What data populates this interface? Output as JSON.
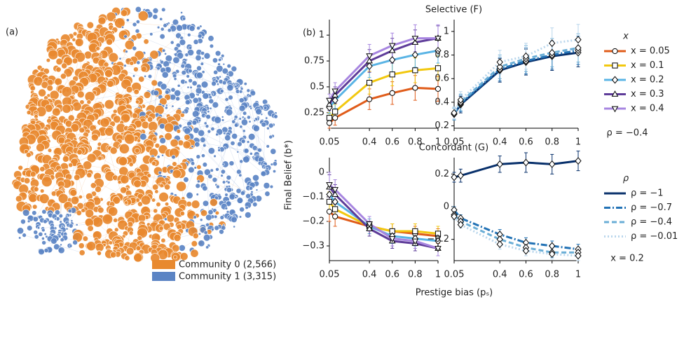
{
  "panel_a": {
    "label": "(a)",
    "legend": [
      {
        "name": "Community 0  (2,566)",
        "color": "#e8892f"
      },
      {
        "name": "Community 1  (3,315)",
        "color": "#5b84c4"
      }
    ]
  },
  "panel_b": {
    "label": "(b)",
    "y_label": "Final Belief (b*)",
    "x_label": "Prestige bias (pₛ)",
    "legends": [
      {
        "title": "x",
        "note": "ρ = −0.4",
        "entries": [
          {
            "name": "x = 0.05",
            "color": "#e05c1a",
            "marker": "circle",
            "linestyle": "solid"
          },
          {
            "name": "x = 0.1",
            "color": "#f2c80f",
            "marker": "square",
            "linestyle": "solid"
          },
          {
            "name": "x = 0.2",
            "color": "#5ab4e5",
            "marker": "diamond",
            "linestyle": "solid"
          },
          {
            "name": "x = 0.3",
            "color": "#5e3c99",
            "marker": "triangle-up",
            "linestyle": "solid"
          },
          {
            "name": "x = 0.4",
            "color": "#a785e0",
            "marker": "triangle-down",
            "linestyle": "solid"
          }
        ]
      },
      {
        "title": "ρ",
        "note": "x = 0.2",
        "entries": [
          {
            "name": "ρ = −1",
            "color": "#08306b",
            "linestyle": "solid"
          },
          {
            "name": "ρ = −0.7",
            "color": "#2272b5",
            "linestyle": "dashdot"
          },
          {
            "name": "ρ = −0.4",
            "color": "#6aaed6",
            "linestyle": "dashed"
          },
          {
            "name": "ρ = −0.01",
            "color": "#b9d6ec",
            "linestyle": "dotted"
          }
        ]
      }
    ]
  },
  "chart_data": [
    {
      "type": "line",
      "title": "Selective (F)",
      "x": [
        0.05,
        0.1,
        0.4,
        0.6,
        0.8,
        1
      ],
      "xlim": [
        0.05,
        1
      ],
      "xticks": [
        0.05,
        0.4,
        0.6,
        0.8,
        1
      ],
      "ylim": [
        0.1,
        1.15
      ],
      "yticks": [
        0.25,
        0.5,
        0.75,
        1
      ],
      "series": [
        {
          "color": "#e05c1a",
          "marker": "circle",
          "linestyle": "solid",
          "values": [
            0.15,
            0.2,
            0.38,
            0.44,
            0.49,
            0.48
          ],
          "errors": [
            0.05,
            0.07,
            0.1,
            0.11,
            0.12,
            0.12
          ]
        },
        {
          "color": "#f2c80f",
          "marker": "square",
          "linestyle": "solid",
          "values": [
            0.2,
            0.26,
            0.54,
            0.62,
            0.66,
            0.68
          ],
          "errors": [
            0.05,
            0.07,
            0.11,
            0.11,
            0.12,
            0.12
          ]
        },
        {
          "color": "#5ab4e5",
          "marker": "diamond",
          "linestyle": "solid",
          "values": [
            0.3,
            0.37,
            0.7,
            0.76,
            0.81,
            0.85
          ],
          "errors": [
            0.06,
            0.08,
            0.11,
            0.12,
            0.12,
            0.12
          ]
        },
        {
          "color": "#5e3c99",
          "marker": "triangle-up",
          "linestyle": "solid",
          "values": [
            0.33,
            0.42,
            0.75,
            0.85,
            0.93,
            0.97
          ],
          "errors": [
            0.06,
            0.08,
            0.11,
            0.12,
            0.12,
            0.12
          ]
        },
        {
          "color": "#a785e0",
          "marker": "triangle-down",
          "linestyle": "solid",
          "values": [
            0.37,
            0.46,
            0.8,
            0.9,
            0.97,
            0.97
          ],
          "errors": [
            0.06,
            0.08,
            0.11,
            0.12,
            0.13,
            0.13
          ]
        }
      ]
    },
    {
      "type": "line",
      "x": [
        0.05,
        0.1,
        0.4,
        0.6,
        0.8,
        1
      ],
      "xlim": [
        0.05,
        1
      ],
      "xticks": [
        0.05,
        0.4,
        0.6,
        0.8,
        1
      ],
      "ylim": [
        0.18,
        1.1
      ],
      "yticks": [
        0.2,
        0.4,
        0.6,
        0.8,
        1
      ],
      "series": [
        {
          "color": "#08306b",
          "marker": "diamond",
          "linestyle": "solid",
          "values": [
            0.3,
            0.38,
            0.67,
            0.74,
            0.79,
            0.82
          ],
          "errors": [
            0.05,
            0.07,
            0.1,
            0.11,
            0.12,
            0.12
          ]
        },
        {
          "color": "#2272b5",
          "marker": "diamond",
          "linestyle": "dashdot",
          "values": [
            0.3,
            0.39,
            0.68,
            0.75,
            0.8,
            0.84
          ],
          "errors": [
            0.05,
            0.07,
            0.1,
            0.11,
            0.12,
            0.12
          ]
        },
        {
          "color": "#6aaed6",
          "marker": "diamond",
          "linestyle": "dashed",
          "values": [
            0.3,
            0.4,
            0.7,
            0.77,
            0.82,
            0.86
          ],
          "errors": [
            0.05,
            0.07,
            0.1,
            0.11,
            0.12,
            0.12
          ]
        },
        {
          "color": "#b9d6ec",
          "marker": "diamond",
          "linestyle": "dotted",
          "values": [
            0.31,
            0.42,
            0.74,
            0.79,
            0.9,
            0.93
          ],
          "errors": [
            0.05,
            0.07,
            0.1,
            0.11,
            0.13,
            0.13
          ]
        }
      ]
    },
    {
      "type": "line",
      "title": "Concordant (G)",
      "x": [
        0.05,
        0.1,
        0.4,
        0.6,
        0.8,
        1
      ],
      "xlim": [
        0.05,
        1
      ],
      "xticks": [
        0.05,
        0.4,
        0.6,
        0.8,
        1
      ],
      "ylim": [
        -0.36,
        0.06
      ],
      "yticks": [
        0,
        {
          "value": -0.1,
          "label": "−0.1"
        },
        {
          "value": -0.2,
          "label": "−0.2"
        },
        {
          "value": -0.3,
          "label": "−0.3"
        }
      ],
      "series": [
        {
          "color": "#e05c1a",
          "marker": "circle",
          "linestyle": "solid",
          "values": [
            -0.16,
            -0.18,
            -0.22,
            -0.24,
            -0.25,
            -0.26
          ],
          "errors": [
            0.04,
            0.04,
            0.03,
            0.03,
            0.03,
            0.03
          ]
        },
        {
          "color": "#f2c80f",
          "marker": "square",
          "linestyle": "solid",
          "values": [
            -0.12,
            -0.15,
            -0.22,
            -0.24,
            -0.24,
            -0.25
          ],
          "errors": [
            0.04,
            0.04,
            0.03,
            0.03,
            0.03,
            0.03
          ]
        },
        {
          "color": "#5ab4e5",
          "marker": "diamond",
          "linestyle": "solid",
          "values": [
            -0.09,
            -0.12,
            -0.22,
            -0.26,
            -0.27,
            -0.28
          ],
          "errors": [
            0.04,
            0.04,
            0.03,
            0.03,
            0.03,
            0.03
          ]
        },
        {
          "color": "#5e3c99",
          "marker": "triangle-up",
          "linestyle": "solid",
          "values": [
            -0.06,
            -0.09,
            -0.23,
            -0.28,
            -0.29,
            -0.31
          ],
          "errors": [
            0.05,
            0.04,
            0.03,
            0.03,
            0.03,
            0.03
          ]
        },
        {
          "color": "#a785e0",
          "marker": "triangle-down",
          "linestyle": "solid",
          "values": [
            -0.05,
            -0.07,
            -0.21,
            -0.27,
            -0.28,
            -0.31
          ],
          "errors": [
            0.05,
            0.04,
            0.03,
            0.03,
            0.03,
            0.03
          ]
        }
      ]
    },
    {
      "type": "line",
      "x": [
        0.05,
        0.1,
        0.4,
        0.6,
        0.8,
        1
      ],
      "xlim": [
        0.05,
        1
      ],
      "xticks": [
        0.05,
        0.4,
        0.6,
        0.8,
        1
      ],
      "ylim": [
        -0.33,
        0.3
      ],
      "yticks": [
        0.2,
        0,
        {
          "value": -0.2,
          "label": "−0.2"
        }
      ],
      "series": [
        {
          "color": "#08306b",
          "marker": "diamond",
          "linestyle": "solid",
          "values": [
            0.18,
            0.19,
            0.26,
            0.27,
            0.26,
            0.28
          ],
          "errors": [
            0.03,
            0.04,
            0.05,
            0.06,
            0.06,
            0.06
          ]
        },
        {
          "color": "#2272b5",
          "marker": "diamond",
          "linestyle": "dashdot",
          "values": [
            -0.02,
            -0.07,
            -0.17,
            -0.22,
            -0.24,
            -0.26
          ],
          "errors": [
            0.02,
            0.02,
            0.03,
            0.03,
            0.03,
            0.03
          ]
        },
        {
          "color": "#6aaed6",
          "marker": "diamond",
          "linestyle": "dashed",
          "values": [
            -0.05,
            -0.09,
            -0.2,
            -0.25,
            -0.28,
            -0.28
          ],
          "errors": [
            0.02,
            0.02,
            0.03,
            0.03,
            0.03,
            0.03
          ]
        },
        {
          "color": "#b9d6ec",
          "marker": "diamond",
          "linestyle": "dotted",
          "values": [
            -0.06,
            -0.11,
            -0.23,
            -0.27,
            -0.29,
            -0.3
          ],
          "errors": [
            0.02,
            0.02,
            0.03,
            0.03,
            0.03,
            0.03
          ]
        }
      ]
    }
  ]
}
